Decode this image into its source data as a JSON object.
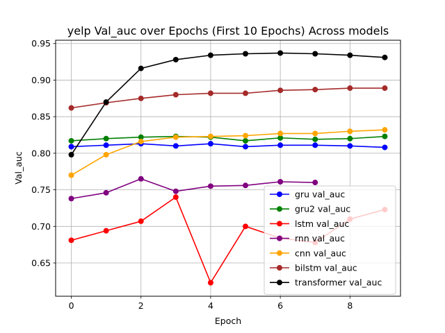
{
  "chart_data": {
    "type": "line",
    "title": "yelp Val_auc over Epochs (First 10 Epochs) Across models",
    "xlabel": "Epoch",
    "ylabel": "Val_auc",
    "xlim": [
      -0.45,
      9.45
    ],
    "ylim": [
      0.6045,
      0.9545
    ],
    "xticks": [
      0,
      2,
      4,
      6,
      8
    ],
    "yticks": [
      0.65,
      0.7,
      0.75,
      0.8,
      0.85,
      0.9,
      0.95
    ],
    "ytick_labels": [
      "0.65",
      "0.70",
      "0.75",
      "0.80",
      "0.85",
      "0.90",
      "0.95"
    ],
    "grid": true,
    "legend_position": "lower-right",
    "series": [
      {
        "name": "gru val_auc",
        "color": "#0000ff",
        "x": [
          0,
          1,
          2,
          3,
          4,
          5,
          6,
          7,
          8,
          9
        ],
        "values": [
          0.809,
          0.811,
          0.813,
          0.81,
          0.813,
          0.809,
          0.811,
          0.811,
          0.81,
          0.808
        ]
      },
      {
        "name": "gru2 val_auc",
        "color": "#008000",
        "x": [
          0,
          1,
          2,
          3,
          4,
          5,
          6,
          7,
          8,
          9
        ],
        "values": [
          0.817,
          0.82,
          0.822,
          0.823,
          0.822,
          0.817,
          0.821,
          0.819,
          0.82,
          0.823
        ]
      },
      {
        "name": "lstm val_auc",
        "color": "#ff0000",
        "x": [
          0,
          1,
          2,
          3,
          4,
          5,
          6,
          7,
          8,
          9
        ],
        "values": [
          0.681,
          0.694,
          0.707,
          0.74,
          0.623,
          0.7,
          0.684,
          0.678,
          0.71,
          0.723
        ]
      },
      {
        "name": "rnn val_auc",
        "color": "#800080",
        "x": [
          0,
          1,
          2,
          3,
          4,
          5,
          6,
          7
        ],
        "values": [
          0.738,
          0.746,
          0.765,
          0.748,
          0.755,
          0.756,
          0.761,
          0.76
        ]
      },
      {
        "name": "cnn val_auc",
        "color": "#ffa500",
        "x": [
          0,
          1,
          2,
          3,
          4,
          5,
          6,
          7,
          8,
          9
        ],
        "values": [
          0.77,
          0.798,
          0.816,
          0.822,
          0.823,
          0.824,
          0.827,
          0.827,
          0.83,
          0.832
        ]
      },
      {
        "name": "bilstm val_auc",
        "color": "#a52a2a",
        "x": [
          0,
          1,
          2,
          3,
          4,
          5,
          6,
          7,
          8,
          9
        ],
        "values": [
          0.862,
          0.869,
          0.875,
          0.88,
          0.882,
          0.882,
          0.886,
          0.887,
          0.889,
          0.889
        ]
      },
      {
        "name": "transformer val_auc",
        "color": "#000000",
        "x": [
          0,
          1,
          2,
          3,
          4,
          5,
          6,
          7,
          8,
          9
        ],
        "values": [
          0.798,
          0.87,
          0.916,
          0.928,
          0.934,
          0.936,
          0.937,
          0.936,
          0.934,
          0.931
        ]
      }
    ]
  }
}
